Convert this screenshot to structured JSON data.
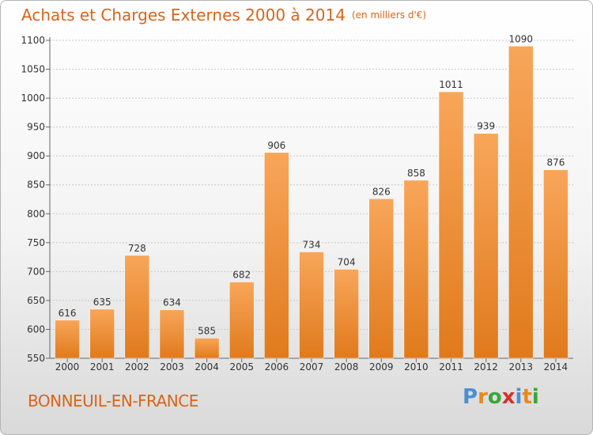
{
  "header": {
    "title": "Achats et Charges Externes 2000 à 2014",
    "subtitle": "(en milliers d'€)"
  },
  "footer": {
    "city": "BONNEUIL-EN-FRANCE",
    "logo_letters": [
      "P",
      "r",
      "o",
      "x",
      "i",
      "t",
      "i"
    ],
    "logo_colors": [
      "#4a8fd4",
      "#e8891e",
      "#3aa63a",
      "#d8302c",
      "#4a8fd4",
      "#e8891e",
      "#3aa63a"
    ]
  },
  "colors": {
    "bar_light": "#f8a65a",
    "bar_dark": "#e07a1c",
    "title": "#d9641b"
  },
  "chart_data": {
    "type": "bar",
    "title": "Achats et Charges Externes 2000 à 2014",
    "subtitle": "(en milliers d'€)",
    "categories": [
      "2000",
      "2001",
      "2002",
      "2003",
      "2004",
      "2005",
      "2006",
      "2007",
      "2008",
      "2009",
      "2010",
      "2011",
      "2012",
      "2013",
      "2014"
    ],
    "values": [
      616,
      635,
      728,
      634,
      585,
      682,
      906,
      734,
      704,
      826,
      858,
      1011,
      939,
      1090,
      876
    ],
    "ylim": [
      550,
      1100
    ],
    "yticks": [
      550,
      600,
      650,
      700,
      750,
      800,
      850,
      900,
      950,
      1000,
      1050,
      1100
    ],
    "grid": true
  }
}
